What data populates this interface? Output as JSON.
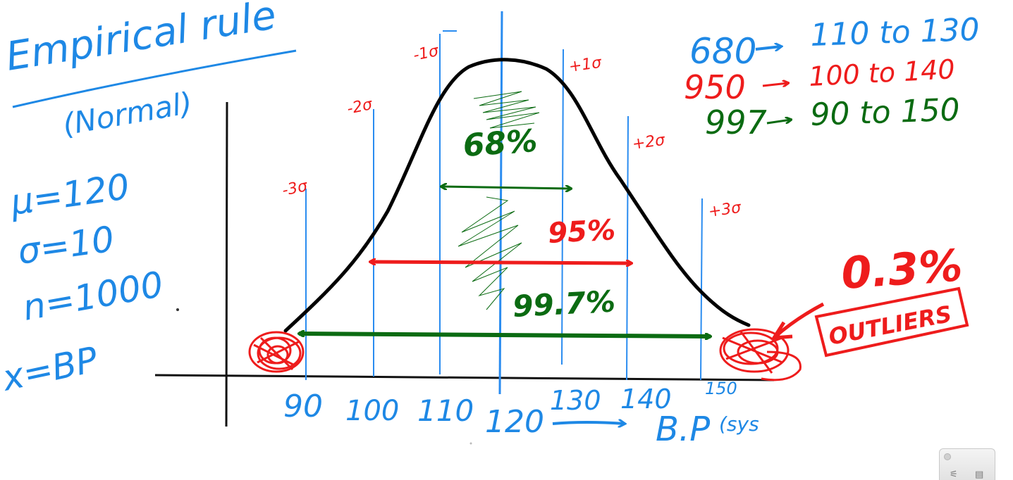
{
  "title": "Empirical rule",
  "subtitle": "(Normal)",
  "parameters": [
    "μ=120",
    "σ=10",
    "n=1000",
    "x=BP"
  ],
  "x_axis": {
    "ticks": [
      "90",
      "100",
      "110",
      "120",
      "130",
      "140",
      "150"
    ],
    "label": "B.P",
    "unit": "(sys"
  },
  "sigma_labels": [
    "-3σ",
    "-2σ",
    "-1σ",
    "+1σ",
    "+2σ",
    "+3σ"
  ],
  "ranges": [
    {
      "percent": "68%",
      "summary_count": "680",
      "summary_range": "110 to 130",
      "color": "#0b6b12"
    },
    {
      "percent": "95%",
      "summary_count": "950",
      "summary_range": "100 to 140",
      "color": "#ee1c1c"
    },
    {
      "percent": "99.7%",
      "summary_count": "997",
      "summary_range": "90 to 150",
      "color": "#0b6b12"
    }
  ],
  "summary_colors": [
    "#1e88e5",
    "#ee1c1c",
    "#0b6b12"
  ],
  "outliers": {
    "percent": "0.3%",
    "label": "OUTLIERS",
    "color": "#ee1c1c"
  },
  "colors": {
    "blue": "#1e88e5",
    "red": "#ee1c1c",
    "green": "#0b6b12",
    "curve": "#000000"
  },
  "icons": [
    "window-dot-icon",
    "sliders-icon",
    "layout-icon"
  ]
}
